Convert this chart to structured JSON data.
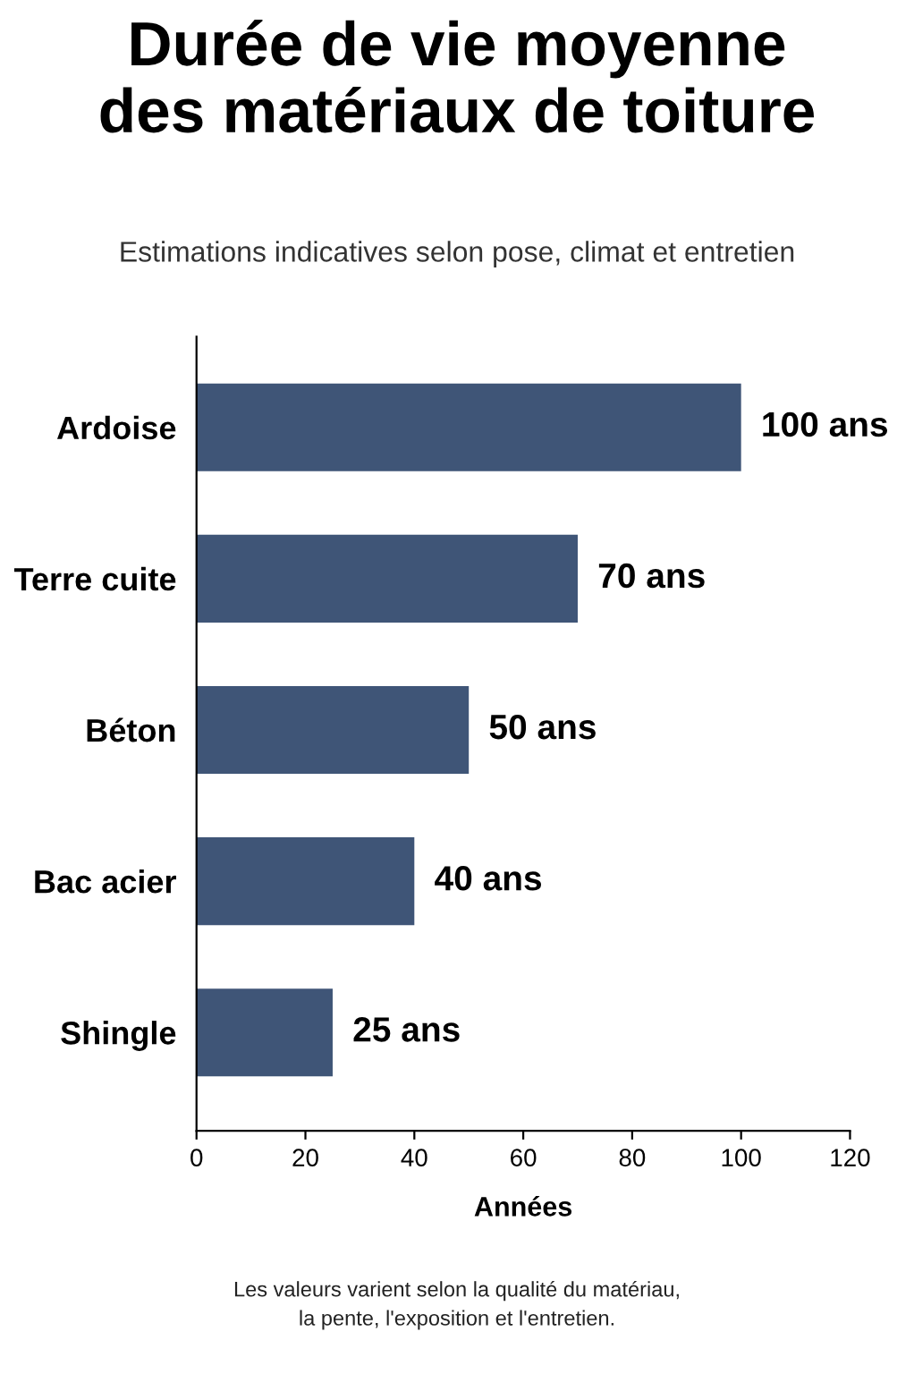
{
  "chart_data": {
    "type": "bar",
    "orientation": "horizontal",
    "title": "Durée de vie moyenne\ndes matériaux de toiture",
    "subtitle": "Estimations indicatives selon pose, climat et entretien",
    "xlabel": "Années",
    "categories": [
      "Ardoise",
      "Terre cuite",
      "Béton",
      "Bac acier",
      "Shingle"
    ],
    "values": [
      100,
      70,
      50,
      40,
      25
    ],
    "value_labels": [
      "100 ans",
      "70 ans",
      "50 ans",
      "40 ans",
      "25 ans"
    ],
    "color": "#3f5577",
    "xlim": [
      0,
      120
    ],
    "xticks": [
      0,
      20,
      40,
      60,
      80,
      100,
      120
    ],
    "grid": false,
    "legend": false,
    "annotations": [
      "Les valeurs varient selon la qualité du matériau,\nla pente, l'exposition et l'entretien."
    ]
  }
}
